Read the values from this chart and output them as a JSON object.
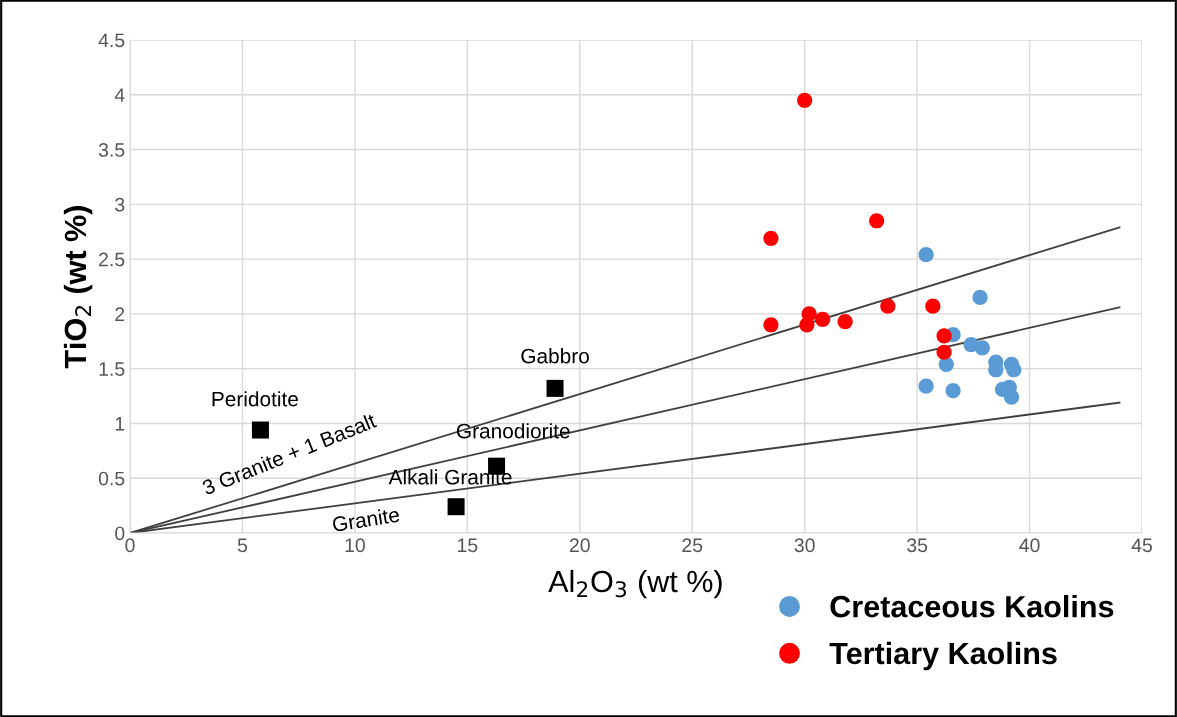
{
  "chart_data": {
    "type": "scatter",
    "xlabel": "Al$_{2}$O$_{3}$ (wt %)",
    "ylabel": "TiO$_{2}$ (wt %)",
    "xlim": [
      0,
      45
    ],
    "xticks": [
      0,
      5,
      10,
      15,
      20,
      25,
      30,
      35,
      40,
      45
    ],
    "ylim": [
      0,
      4.5
    ],
    "yticks": [
      0,
      0.5,
      1,
      1.5,
      2,
      2.5,
      3,
      3.5,
      4,
      4.5
    ],
    "grid": true,
    "legend": "bottom right",
    "marker": "circle",
    "series": [
      {
        "name": "Cretaceous Kaolins",
        "color": "#5b9bd5",
        "x": [
          35.4,
          37.8,
          36.6,
          37.4,
          37.9,
          36.3,
          35.4,
          36.6,
          38.5,
          38.5,
          39.2,
          39.3,
          38.8,
          39.1,
          39.2
        ],
        "values": [
          2.54,
          2.15,
          1.81,
          1.72,
          1.69,
          1.54,
          1.34,
          1.3,
          1.56,
          1.49,
          1.54,
          1.49,
          1.31,
          1.33,
          1.24
        ]
      },
      {
        "name": "Tertiary Kaolins",
        "color": "#ff0000",
        "x": [
          30,
          28.5,
          33.2,
          28.5,
          30.2,
          30.1,
          30.8,
          31.8,
          33.7,
          35.7,
          36.2,
          36.2
        ],
        "values": [
          3.95,
          2.69,
          2.85,
          1.9,
          2.0,
          1.9,
          1.95,
          1.93,
          2.07,
          2.07,
          1.8,
          1.65
        ]
      },
      {
        "color": "#000000",
        "marker": "square",
        "x": [
          5.8,
          18.9,
          16.3,
          14.5
        ],
        "values": [
          0.94,
          1.32,
          0.61,
          0.24
        ]
      },
      {
        "type": "line",
        "color": "#404040",
        "marker": "none",
        "x": [
          0,
          44
        ],
        "values": [
          0,
          2.79
        ]
      },
      {
        "type": "line",
        "color": "#404040",
        "marker": "none",
        "x": [
          0,
          44
        ],
        "values": [
          0,
          2.06
        ]
      },
      {
        "type": "line",
        "color": "#404040",
        "marker": "none",
        "x": [
          0,
          44
        ],
        "values": [
          0,
          1.19
        ]
      }
    ],
    "annotations": [
      {
        "text": "Peridotite",
        "x": 5.8,
        "y": 0.94
      },
      {
        "text": "Gabbro",
        "x": 18.9,
        "y": 1.32
      },
      {
        "text": "Granodiorite",
        "x": 16.3,
        "y": 0.61
      },
      {
        "text": "Alkali Granite",
        "x": 14.5,
        "y": 0.24
      },
      {
        "text": "Granite",
        "x": 10.5,
        "y": 0.284
      },
      {
        "text": "3 Granite + 1 Basalt",
        "x": 7.1,
        "y": 0.45
      }
    ]
  }
}
